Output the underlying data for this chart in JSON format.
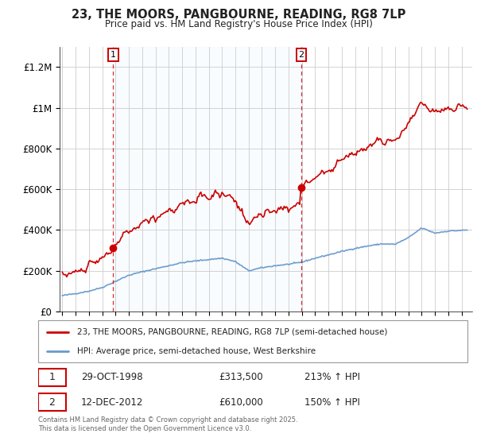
{
  "title": "23, THE MOORS, PANGBOURNE, READING, RG8 7LP",
  "subtitle": "Price paid vs. HM Land Registry's House Price Index (HPI)",
  "legend_line1": "23, THE MOORS, PANGBOURNE, READING, RG8 7LP (semi-detached house)",
  "legend_line2": "HPI: Average price, semi-detached house, West Berkshire",
  "footer": "Contains HM Land Registry data © Crown copyright and database right 2025.\nThis data is licensed under the Open Government Licence v3.0.",
  "sale1_date": "29-OCT-1998",
  "sale1_price": "£313,500",
  "sale1_hpi": "213% ↑ HPI",
  "sale2_date": "12-DEC-2012",
  "sale2_price": "£610,000",
  "sale2_hpi": "150% ↑ HPI",
  "red_color": "#cc0000",
  "blue_color": "#6699cc",
  "vline_color": "#cc0000",
  "grid_color": "#cccccc",
  "bg_color": "#ffffff",
  "shade_color": "#ddeeff",
  "marker1_year": 1998.83,
  "marker1_value": 313500,
  "marker2_year": 2012.95,
  "marker2_value": 610000,
  "vline1_year": 1998.83,
  "vline2_year": 2012.95,
  "ylim": [
    0,
    1300000
  ],
  "xlim_start": 1994.8,
  "xlim_end": 2025.8,
  "yticks": [
    0,
    200000,
    400000,
    600000,
    800000,
    1000000,
    1200000
  ],
  "ytick_labels": [
    "£0",
    "£200K",
    "£400K",
    "£600K",
    "£800K",
    "£1M",
    "£1.2M"
  ]
}
